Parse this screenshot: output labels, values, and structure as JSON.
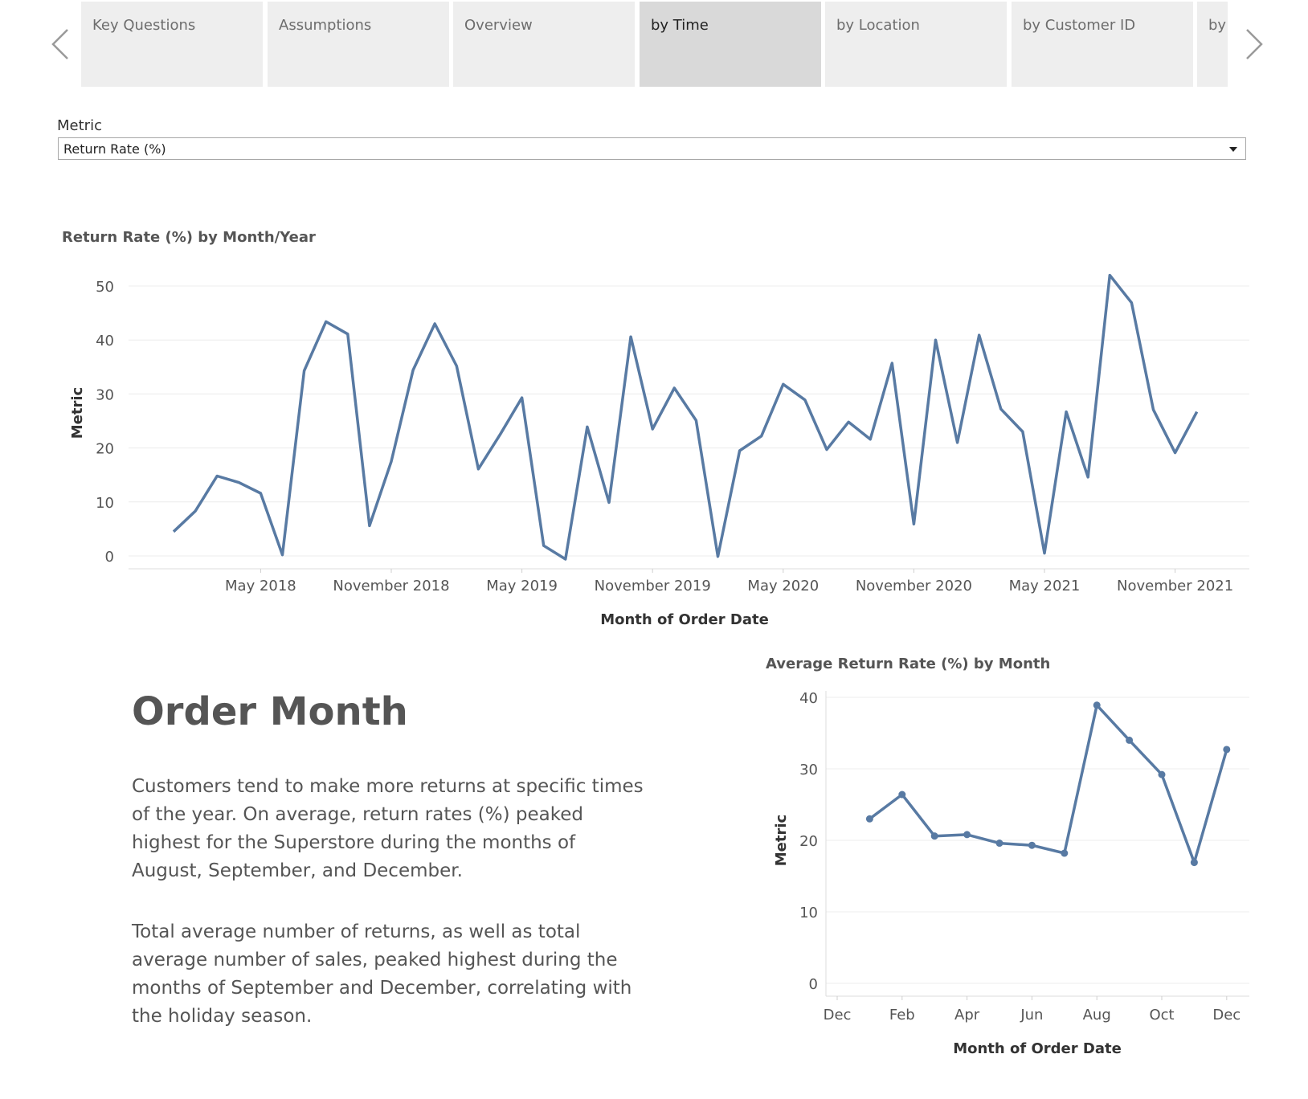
{
  "nav": {
    "prev_icon": "chevron-left-icon",
    "next_icon": "chevron-right-icon"
  },
  "tabs": [
    {
      "label": "Key Questions"
    },
    {
      "label": "Assumptions"
    },
    {
      "label": "Overview"
    },
    {
      "label": "by Time",
      "active": true
    },
    {
      "label": "by Location"
    },
    {
      "label": "by Customer ID"
    },
    {
      "label": "by"
    }
  ],
  "filter": {
    "label": "Metric",
    "value": "Return Rate (%)"
  },
  "text_panel": {
    "heading": "Order Month",
    "paragraph1": "Customers tend to make more returns at specific times of the year. On average, return rates (%) peaked highest for the Superstore during the months of August, September, and December.",
    "paragraph2": "Total average number of returns, as well as total average number of sales, peaked highest during the months of September and December, correlating with the holiday season."
  },
  "colors": {
    "series": "#587aa3",
    "grid": "#ececec",
    "axis_text": "#555555"
  },
  "chart_data": [
    {
      "type": "line",
      "title": "Return Rate (%) by Month/Year",
      "xlabel": "Month of Order Date",
      "ylabel": "Metric",
      "ylim": [
        0,
        50
      ],
      "yticks": [
        0,
        10,
        20,
        30,
        40,
        50
      ],
      "x_tick_labels": [
        "May 2018",
        "November 2018",
        "May 2019",
        "November 2019",
        "May 2020",
        "November 2020",
        "May 2021",
        "November 2021"
      ],
      "x_tick_start_index": 4,
      "x_tick_step": 6,
      "x_domain": [
        0,
        52
      ],
      "markers": false,
      "series": [
        {
          "name": "Return Rate (%)",
          "start": "Dec 2017",
          "values": [
            4.5,
            8.3,
            14.8,
            13.6,
            11.6,
            0.2,
            34.3,
            43.4,
            41.1,
            5.6,
            17.5,
            34.4,
            43,
            35.2,
            16.1,
            22.5,
            29.3,
            1.9,
            -0.6,
            23.9,
            9.9,
            40.6,
            23.5,
            31.1,
            25.1,
            -0.1,
            19.5,
            22.2,
            31.8,
            28.9,
            19.7,
            24.8,
            21.6,
            35.7,
            5.9,
            40,
            21,
            40.9,
            27.2,
            23,
            0.5,
            26.7,
            14.6,
            52,
            46.9,
            27.1,
            19.1,
            26.7
          ]
        }
      ]
    },
    {
      "type": "line",
      "title": "Average Return Rate (%) by Month",
      "xlabel": "Month of Order Date",
      "ylabel": "Metric",
      "ylim": [
        0,
        40
      ],
      "yticks": [
        0,
        10,
        20,
        30,
        40
      ],
      "categories": [
        "Dec",
        "Jan",
        "Feb",
        "Mar",
        "Apr",
        "May",
        "Jun",
        "Jul",
        "Aug",
        "Sep",
        "Oct",
        "Nov",
        "Dec"
      ],
      "x_tick_labels": [
        "Dec",
        "Feb",
        "Apr",
        "Jun",
        "Aug",
        "Oct",
        "Dec"
      ],
      "markers": true,
      "series": [
        {
          "name": "Average Return Rate (%)",
          "values": [
            null,
            23,
            26.4,
            20.6,
            20.8,
            19.6,
            19.3,
            18.2,
            38.9,
            34,
            29.2,
            16.9,
            32.7
          ]
        }
      ]
    }
  ]
}
